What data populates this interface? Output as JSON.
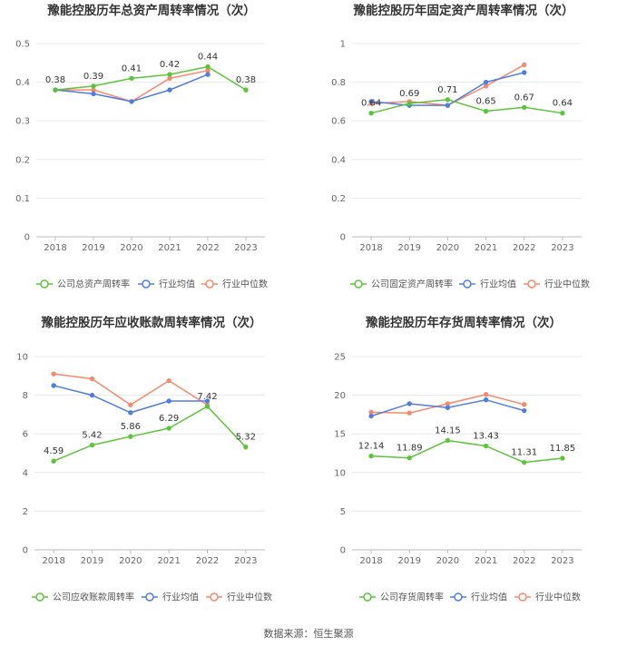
{
  "source": "数据来源：恒生聚源",
  "chart_data": [
    {
      "type": "line",
      "title": "豫能控股历年总资产周转率情况（次）",
      "categories": [
        "2018",
        "2019",
        "2020",
        "2021",
        "2022",
        "2023"
      ],
      "ylim": [
        0,
        0.5
      ],
      "yticks": [
        "0",
        "0.1",
        "0.2",
        "0.3",
        "0.4",
        "0.5"
      ],
      "series": [
        {
          "name": "公司总资产周转率",
          "color": "#5cc43a",
          "values": [
            0.38,
            0.39,
            0.41,
            0.42,
            0.44,
            0.38
          ],
          "labels": [
            "0.38",
            "0.39",
            "0.41",
            "0.42",
            "0.44",
            "0.38"
          ]
        },
        {
          "name": "行业均值",
          "color": "#4f7de0",
          "values": [
            0.38,
            0.37,
            0.35,
            0.38,
            0.42,
            null
          ]
        },
        {
          "name": "行业中位数",
          "color": "#f4896b",
          "values": [
            0.38,
            0.38,
            0.35,
            0.41,
            0.43,
            null
          ]
        }
      ]
    },
    {
      "type": "line",
      "title": "豫能控股历年固定资产周转率情况（次）",
      "categories": [
        "2018",
        "2019",
        "2020",
        "2021",
        "2022",
        "2023"
      ],
      "ylim": [
        0,
        1
      ],
      "yticks": [
        "0",
        "0.2",
        "0.4",
        "0.6",
        "0.8",
        "1"
      ],
      "series": [
        {
          "name": "公司固定资产周转率",
          "color": "#5cc43a",
          "values": [
            0.64,
            0.69,
            0.71,
            0.65,
            0.67,
            0.64
          ],
          "labels": [
            "0.64",
            "0.69",
            "0.71",
            "0.65",
            "0.67",
            "0.64"
          ]
        },
        {
          "name": "行业均值",
          "color": "#4f7de0",
          "values": [
            0.7,
            0.68,
            0.68,
            0.8,
            0.85,
            null
          ]
        },
        {
          "name": "行业中位数",
          "color": "#f4896b",
          "values": [
            0.69,
            0.7,
            0.68,
            0.78,
            0.89,
            null
          ]
        }
      ]
    },
    {
      "type": "line",
      "title": "豫能控股历年应收账款周转率情况（次）",
      "categories": [
        "2018",
        "2019",
        "2020",
        "2021",
        "2022",
        "2023"
      ],
      "ylim": [
        0,
        10
      ],
      "yticks": [
        "0",
        "2",
        "4",
        "6",
        "8",
        "10"
      ],
      "series": [
        {
          "name": "公司应收账款周转率",
          "color": "#5cc43a",
          "values": [
            4.59,
            5.42,
            5.86,
            6.29,
            7.42,
            5.32
          ],
          "labels": [
            "4.59",
            "5.42",
            "5.86",
            "6.29",
            "7.42",
            "5.32"
          ]
        },
        {
          "name": "行业均值",
          "color": "#4f7de0",
          "values": [
            8.5,
            8.0,
            7.1,
            7.7,
            7.7,
            null
          ]
        },
        {
          "name": "行业中位数",
          "color": "#f4896b",
          "values": [
            9.1,
            8.85,
            7.5,
            8.75,
            7.5,
            null
          ]
        }
      ]
    },
    {
      "type": "line",
      "title": "豫能控股历年存货周转率情况（次）",
      "categories": [
        "2018",
        "2019",
        "2020",
        "2021",
        "2022",
        "2023"
      ],
      "ylim": [
        0,
        25
      ],
      "yticks": [
        "0",
        "5",
        "10",
        "15",
        "20",
        "25"
      ],
      "series": [
        {
          "name": "公司存货周转率",
          "color": "#5cc43a",
          "values": [
            12.14,
            11.89,
            14.15,
            13.43,
            11.31,
            11.85
          ],
          "labels": [
            "12.14",
            "11.89",
            "14.15",
            "13.43",
            "11.31",
            "11.85"
          ]
        },
        {
          "name": "行业均值",
          "color": "#4f7de0",
          "values": [
            17.3,
            18.9,
            18.4,
            19.4,
            18.0,
            null
          ]
        },
        {
          "name": "行业中位数",
          "color": "#f4896b",
          "values": [
            17.8,
            17.7,
            18.9,
            20.1,
            18.8,
            null
          ]
        }
      ]
    }
  ]
}
